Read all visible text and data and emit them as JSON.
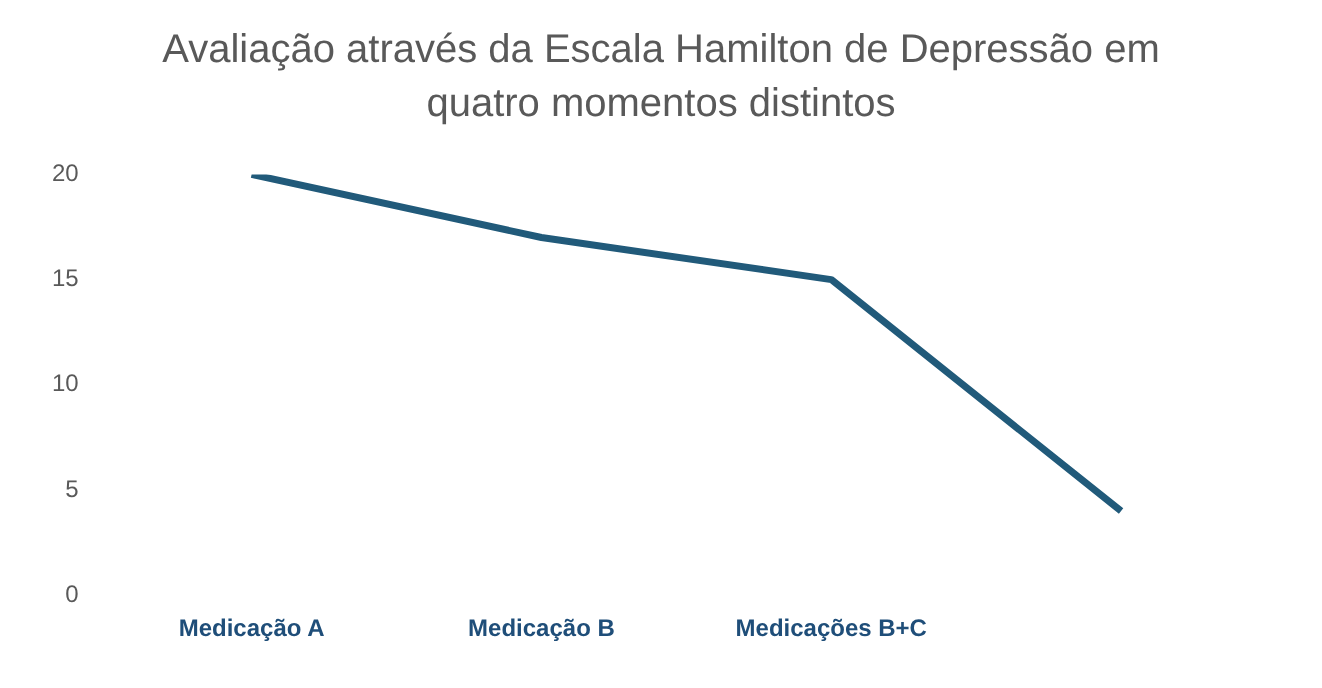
{
  "chart_data": {
    "type": "line",
    "title": "Avaliação através da Escala Hamilton de Depressão em quatro momentos distintos",
    "categories": [
      "Medicação A",
      "Medicação B",
      "Medicações B+C",
      null
    ],
    "series": [
      {
        "color": "#215a7a",
        "values": [
          20,
          17,
          15,
          4
        ]
      }
    ],
    "ylim": [
      0,
      20
    ],
    "yticks": [
      0,
      5,
      10,
      15,
      20
    ],
    "grid": false,
    "legend": false,
    "marker": "none",
    "line_style": "solid"
  }
}
